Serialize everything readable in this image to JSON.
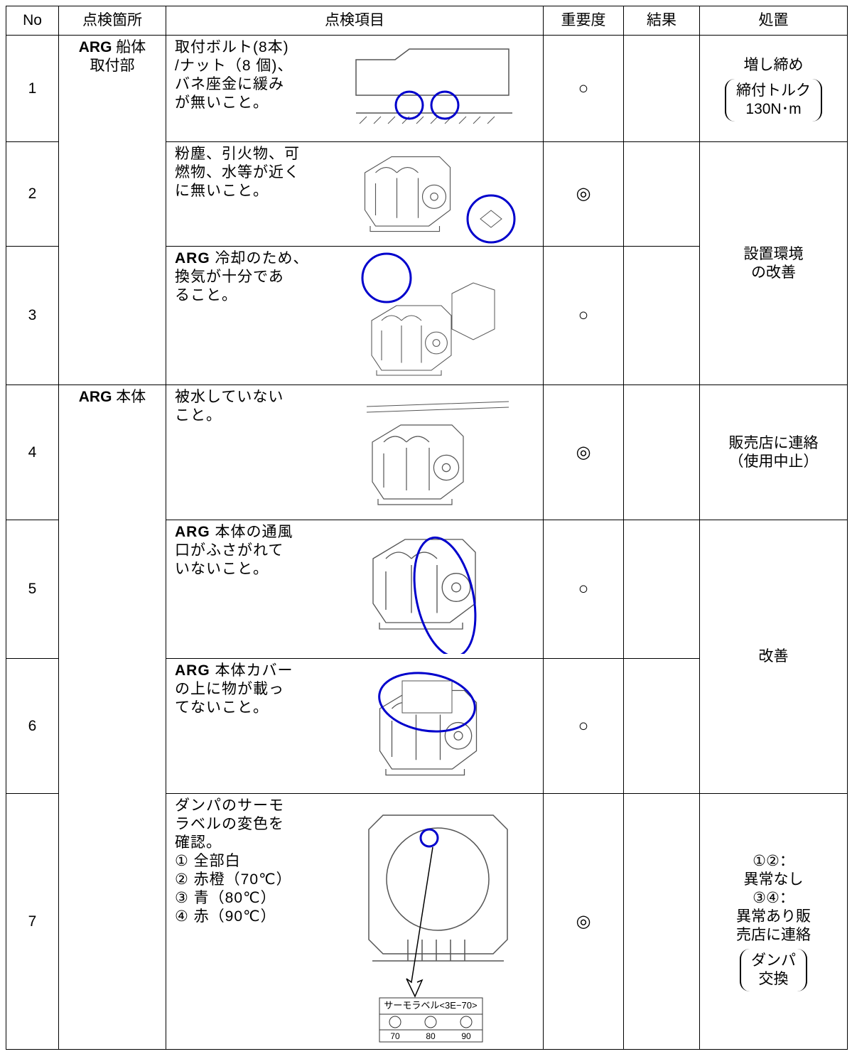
{
  "table": {
    "header": [
      "No",
      "点検箇所",
      "点検項目",
      "重要度",
      "結果",
      "処置"
    ],
    "places": [
      {
        "lead": "ARG",
        "lines": [
          "船体",
          "取付部"
        ]
      },
      {
        "lead": "ARG",
        "lines": [
          "本体"
        ]
      }
    ],
    "rows": [
      {
        "no": "1",
        "lead": "",
        "item": [
          "取付ボルト(8本)",
          "/ナット（8 個)、",
          "バネ座金に緩み",
          "が無いこと。"
        ],
        "importance": "○"
      },
      {
        "no": "2",
        "lead": "",
        "item": [
          "粉塵、引火物、可",
          "燃物、水等が近く",
          "に無いこと。"
        ],
        "importance": "◎"
      },
      {
        "no": "3",
        "lead": "ARG",
        "item": [
          "冷却のため、",
          "換気が十分であ",
          "ること。"
        ],
        "importance": "○"
      },
      {
        "no": "4",
        "lead": "",
        "item": [
          "被水していない",
          "こと。"
        ],
        "importance": "◎"
      },
      {
        "no": "5",
        "lead": "ARG",
        "item": [
          "本体の通風",
          "口がふさがれて",
          "いないこと。"
        ],
        "importance": "○"
      },
      {
        "no": "6",
        "lead": "ARG",
        "item": [
          "本体カバー",
          "の上に物が載っ",
          "てないこと。"
        ],
        "importance": "○"
      },
      {
        "no": "7",
        "lead": "",
        "item": [
          "ダンパのサーモ",
          "ラベルの変色を",
          "確認。",
          "① 全部白",
          "② 赤橙（70℃）",
          "③ 青（80℃）",
          "④ 赤（90℃）"
        ],
        "importance": "◎"
      }
    ],
    "actions": [
      {
        "lines": [
          "増し締め"
        ],
        "bracket": [
          "締付トルク",
          "130N･m"
        ]
      },
      {
        "lines": [
          "設置環境",
          "の改善"
        ]
      },
      {
        "lines": [
          "販売店に連絡",
          "（使用中止）"
        ]
      },
      {
        "lines": [
          "改善"
        ]
      },
      {
        "lines": [
          "①②：",
          "異常なし",
          "③④：",
          "異常あり販",
          "売店に連絡"
        ],
        "bracket": [
          "ダンパ",
          "交換"
        ]
      }
    ],
    "thermo_label": {
      "title": "サーモラベル<3E−70>",
      "temps": [
        "70",
        "80",
        "90"
      ]
    }
  }
}
